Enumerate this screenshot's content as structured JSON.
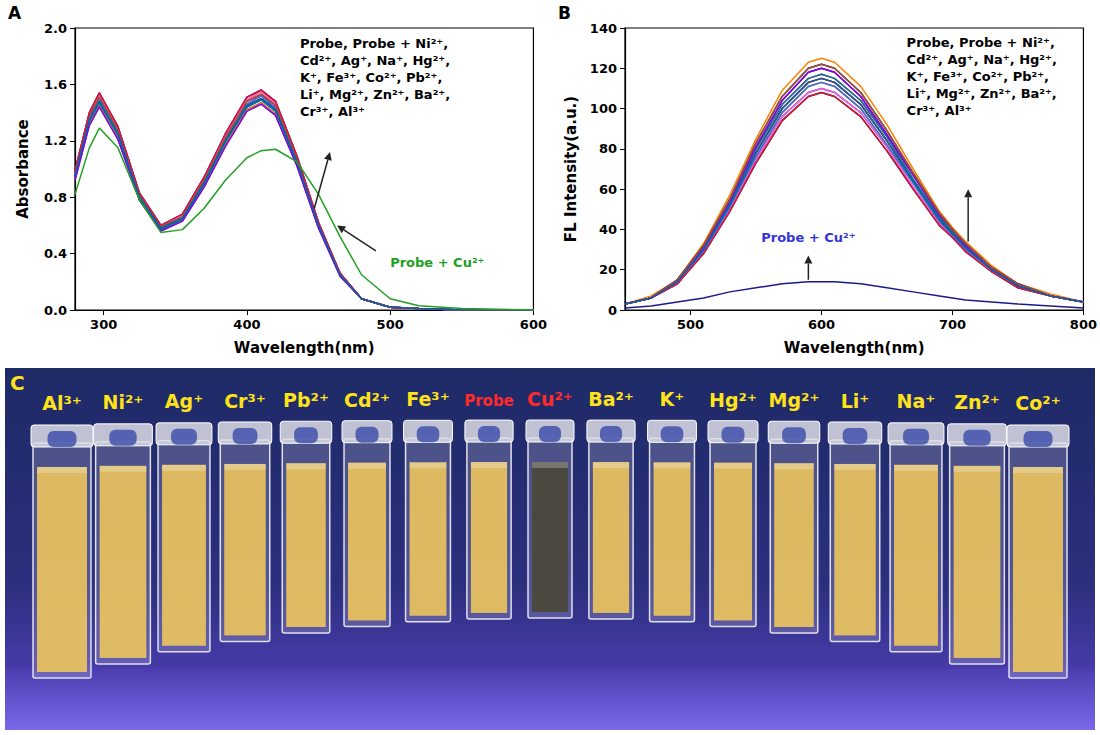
{
  "chart_data": [
    {
      "panel": "A",
      "type": "line",
      "xlabel": "Wavelength(nm)",
      "ylabel": "Absorbance",
      "grid": false,
      "x": [
        280,
        290,
        297,
        310,
        325,
        340,
        355,
        370,
        385,
        400,
        410,
        420,
        435,
        450,
        465,
        480,
        500,
        520,
        550,
        600
      ],
      "xlim": [
        280,
        600
      ],
      "xticks": [
        300,
        400,
        500,
        600
      ],
      "ylim": [
        0,
        2.0
      ],
      "yticks": [
        {
          "value": 0,
          "label": "0.0"
        },
        {
          "value": 0.4,
          "label": "0.4"
        },
        {
          "value": 0.8,
          "label": "0.8"
        },
        {
          "value": 1.2,
          "label": "1.2"
        },
        {
          "value": 1.6,
          "label": "1.6"
        },
        {
          "value": 2.0,
          "label": "2.0"
        }
      ],
      "annotations": [
        {
          "lines": [
            "Probe, Probe + Ni²⁺,",
            "Cd²⁺, Ag⁺, Na⁺, Hg²⁺,",
            "K⁺, Fe³⁺, Co²⁺, Pb²⁺,",
            "Li⁺, Mg²⁺, Zn²⁺, Ba²⁺,",
            "Cr³⁺, Al³⁺"
          ],
          "color": "#000000"
        },
        {
          "lines": [
            "Probe + Cu²⁺"
          ],
          "color": "#22a022"
        }
      ],
      "series": [
        {
          "name": "Probe",
          "color": "#000000",
          "values": [
            0.95,
            1.35,
            1.48,
            1.25,
            0.8,
            0.58,
            0.65,
            0.9,
            1.2,
            1.45,
            1.5,
            1.42,
            1.05,
            0.6,
            0.25,
            0.08,
            0.02,
            0.01,
            0,
            0
          ]
        },
        {
          "name": "Ni²⁺",
          "color": "#ff0000",
          "values": [
            0.98,
            1.39,
            1.52,
            1.29,
            0.82,
            0.6,
            0.67,
            0.93,
            1.24,
            1.49,
            1.55,
            1.46,
            1.08,
            0.62,
            0.26,
            0.08,
            0.02,
            0.01,
            0,
            0
          ]
        },
        {
          "name": "Cd²⁺",
          "color": "#0000ff",
          "values": [
            0.93,
            1.32,
            1.45,
            1.23,
            0.78,
            0.57,
            0.64,
            0.88,
            1.18,
            1.42,
            1.47,
            1.39,
            1.03,
            0.59,
            0.25,
            0.08,
            0.02,
            0.01,
            0,
            0
          ]
        },
        {
          "name": "Ag⁺",
          "color": "#ff00ff",
          "values": [
            0.96,
            1.36,
            1.49,
            1.26,
            0.81,
            0.59,
            0.66,
            0.91,
            1.21,
            1.46,
            1.52,
            1.43,
            1.06,
            0.61,
            0.25,
            0.08,
            0.02,
            0.01,
            0,
            0
          ]
        },
        {
          "name": "Na⁺",
          "color": "#808000",
          "values": [
            0.92,
            1.31,
            1.44,
            1.21,
            0.78,
            0.56,
            0.63,
            0.87,
            1.16,
            1.41,
            1.46,
            1.38,
            1.02,
            0.58,
            0.24,
            0.08,
            0.02,
            0.01,
            0,
            0
          ]
        },
        {
          "name": "Hg²⁺",
          "color": "#000080",
          "values": [
            0.99,
            1.4,
            1.54,
            1.3,
            0.83,
            0.6,
            0.68,
            0.94,
            1.25,
            1.51,
            1.56,
            1.48,
            1.09,
            0.62,
            0.26,
            0.08,
            0.02,
            0.01,
            0,
            0
          ]
        },
        {
          "name": "K⁺",
          "color": "#800080",
          "values": [
            0.94,
            1.34,
            1.47,
            1.24,
            0.79,
            0.57,
            0.64,
            0.89,
            1.19,
            1.44,
            1.49,
            1.41,
            1.04,
            0.59,
            0.25,
            0.08,
            0.02,
            0.01,
            0,
            0
          ]
        },
        {
          "name": "Fe³⁺",
          "color": "#800000",
          "values": [
            0.97,
            1.38,
            1.51,
            1.28,
            0.82,
            0.59,
            0.66,
            0.92,
            1.22,
            1.48,
            1.53,
            1.45,
            1.07,
            0.61,
            0.26,
            0.08,
            0.02,
            0.01,
            0,
            0
          ]
        },
        {
          "name": "Co²⁺",
          "color": "#ff8000",
          "values": [
            0.93,
            1.32,
            1.45,
            1.23,
            0.78,
            0.57,
            0.64,
            0.88,
            1.18,
            1.42,
            1.47,
            1.39,
            1.03,
            0.59,
            0.25,
            0.08,
            0.02,
            0.01,
            0,
            0
          ]
        },
        {
          "name": "Pb²⁺",
          "color": "#ff66cc",
          "values": [
            0.98,
            1.39,
            1.52,
            1.29,
            0.82,
            0.6,
            0.67,
            0.93,
            1.24,
            1.49,
            1.55,
            1.46,
            1.08,
            0.62,
            0.26,
            0.08,
            0.02,
            0.01,
            0,
            0
          ]
        },
        {
          "name": "Li⁺",
          "color": "#008080",
          "values": [
            0.94,
            1.34,
            1.47,
            1.24,
            0.79,
            0.57,
            0.64,
            0.89,
            1.19,
            1.44,
            1.49,
            1.41,
            1.04,
            0.59,
            0.25,
            0.08,
            0.02,
            0.01,
            0,
            0
          ]
        },
        {
          "name": "Mg²⁺",
          "color": "#4169e1",
          "values": [
            0.96,
            1.36,
            1.49,
            1.26,
            0.81,
            0.59,
            0.66,
            0.91,
            1.21,
            1.46,
            1.52,
            1.43,
            1.06,
            0.61,
            0.25,
            0.08,
            0.02,
            0.01,
            0,
            0
          ]
        },
        {
          "name": "Zn²⁺",
          "color": "#8000ff",
          "values": [
            0.92,
            1.31,
            1.44,
            1.21,
            0.78,
            0.56,
            0.63,
            0.87,
            1.16,
            1.41,
            1.46,
            1.38,
            1.02,
            0.58,
            0.24,
            0.08,
            0.02,
            0.01,
            0,
            0
          ]
        },
        {
          "name": "Ba²⁺",
          "color": "#a0522d",
          "values": [
            0.97,
            1.38,
            1.51,
            1.28,
            0.82,
            0.59,
            0.66,
            0.92,
            1.22,
            1.48,
            1.53,
            1.45,
            1.07,
            0.61,
            0.26,
            0.08,
            0.02,
            0.01,
            0,
            0
          ]
        },
        {
          "name": "Cr³⁺",
          "color": "#dc143c",
          "values": [
            0.99,
            1.4,
            1.54,
            1.3,
            0.83,
            0.6,
            0.68,
            0.94,
            1.25,
            1.51,
            1.56,
            1.48,
            1.09,
            0.62,
            0.26,
            0.08,
            0.02,
            0.01,
            0,
            0
          ]
        },
        {
          "name": "Al³⁺",
          "color": "#0066aa",
          "values": [
            0.95,
            1.35,
            1.48,
            1.25,
            0.8,
            0.58,
            0.65,
            0.9,
            1.2,
            1.45,
            1.5,
            1.42,
            1.05,
            0.6,
            0.25,
            0.08,
            0.02,
            0.01,
            0,
            0
          ]
        },
        {
          "name": "Probe + Cu²⁺",
          "color": "#22a022",
          "values": [
            0.82,
            1.15,
            1.29,
            1.15,
            0.78,
            0.55,
            0.57,
            0.72,
            0.92,
            1.08,
            1.13,
            1.14,
            1.05,
            0.82,
            0.52,
            0.25,
            0.08,
            0.03,
            0.01,
            0
          ]
        }
      ]
    },
    {
      "panel": "B",
      "type": "line",
      "xlabel": "Wavelength(nm)",
      "ylabel": "FL Intensity(a.u.)",
      "grid": false,
      "x": [
        450,
        470,
        490,
        510,
        530,
        550,
        570,
        590,
        600,
        610,
        630,
        650,
        670,
        690,
        700,
        710,
        730,
        750,
        775,
        800
      ],
      "xlim": [
        450,
        800
      ],
      "xticks": [
        500,
        600,
        700,
        800
      ],
      "ylim": [
        0,
        140
      ],
      "yticks": [
        0,
        20,
        40,
        60,
        80,
        100,
        120,
        140
      ],
      "annotations": [
        {
          "lines": [
            "Probe, Probe + Ni²⁺,",
            "Cd²⁺, Ag⁺, Na⁺, Hg²⁺,",
            "K⁺, Fe³⁺, Co²⁺, Pb²⁺,",
            "Li⁺, Mg²⁺, Zn²⁺, Ba²⁺,",
            "Cr³⁺, Al³⁺"
          ],
          "color": "#000000"
        },
        {
          "lines": [
            "Probe + Cu²⁺"
          ],
          "color": "#3333dd"
        }
      ],
      "series": [
        {
          "name": "Probe",
          "color": "#000000",
          "values": [
            3,
            6,
            13,
            28,
            49,
            73,
            94,
            106,
            108,
            106,
            96,
            79,
            60,
            42,
            36,
            29,
            19,
            11,
            7,
            4
          ]
        },
        {
          "name": "Ni²⁺",
          "color": "#ff8000",
          "values": [
            3,
            7,
            15,
            33,
            57,
            85,
            109,
            123,
            125,
            123,
            111,
            92,
            70,
            49,
            41,
            34,
            22,
            13,
            8,
            4
          ]
        },
        {
          "name": "Cd²⁺",
          "color": "#0000ff",
          "values": [
            3,
            6,
            13,
            29,
            50,
            75,
            96,
            108,
            110,
            108,
            98,
            81,
            61,
            43,
            36,
            30,
            19,
            12,
            7,
            4
          ]
        },
        {
          "name": "Ag⁺",
          "color": "#ff00ff",
          "values": [
            3,
            6,
            14,
            31,
            53,
            80,
            102,
            115,
            117,
            115,
            104,
            86,
            65,
            46,
            39,
            32,
            20,
            12,
            7,
            4
          ]
        },
        {
          "name": "Na⁺",
          "color": "#808000",
          "values": [
            3,
            6,
            14,
            29,
            51,
            76,
            98,
            111,
            113,
            111,
            100,
            82,
            63,
            44,
            37,
            30,
            20,
            12,
            7,
            4
          ]
        },
        {
          "name": "Hg²⁺",
          "color": "#000080",
          "values": [
            3,
            6,
            15,
            32,
            55,
            83,
            106,
            120,
            122,
            120,
            108,
            89,
            68,
            48,
            40,
            33,
            21,
            13,
            7,
            4
          ]
        },
        {
          "name": "K⁺",
          "color": "#800080",
          "values": [
            3,
            6,
            14,
            30,
            52,
            78,
            100,
            113,
            115,
            113,
            102,
            84,
            64,
            45,
            38,
            31,
            20,
            12,
            7,
            4
          ]
        },
        {
          "name": "Fe³⁺",
          "color": "#800000",
          "values": [
            3,
            6,
            15,
            31,
            54,
            81,
            104,
            118,
            120,
            118,
            106,
            87,
            67,
            47,
            40,
            32,
            21,
            12,
            7,
            4
          ]
        },
        {
          "name": "Co²⁺",
          "color": "#ff0000",
          "values": [
            3,
            6,
            14,
            30,
            52,
            78,
            100,
            113,
            115,
            113,
            102,
            84,
            64,
            45,
            38,
            31,
            20,
            12,
            7,
            4
          ]
        },
        {
          "name": "Pb²⁺",
          "color": "#ff66cc",
          "values": [
            3,
            6,
            13,
            29,
            50,
            75,
            96,
            108,
            110,
            108,
            98,
            81,
            61,
            43,
            36,
            30,
            19,
            12,
            7,
            4
          ]
        },
        {
          "name": "Li⁺",
          "color": "#008080",
          "values": [
            3,
            6,
            14,
            31,
            53,
            80,
            102,
            115,
            117,
            115,
            104,
            86,
            65,
            46,
            39,
            32,
            20,
            12,
            7,
            4
          ]
        },
        {
          "name": "Mg²⁺",
          "color": "#4169e1",
          "values": [
            3,
            6,
            14,
            29,
            51,
            76,
            98,
            111,
            113,
            111,
            100,
            82,
            63,
            44,
            37,
            30,
            20,
            12,
            7,
            4
          ]
        },
        {
          "name": "Zn²⁺",
          "color": "#8000ff",
          "values": [
            3,
            6,
            15,
            31,
            54,
            81,
            104,
            118,
            120,
            118,
            106,
            87,
            67,
            47,
            40,
            32,
            21,
            12,
            7,
            4
          ]
        },
        {
          "name": "Ba²⁺",
          "color": "#a0522d",
          "values": [
            3,
            6,
            15,
            32,
            55,
            83,
            106,
            120,
            122,
            120,
            108,
            89,
            68,
            48,
            40,
            33,
            21,
            13,
            7,
            4
          ]
        },
        {
          "name": "Cr³⁺",
          "color": "#dc143c",
          "values": [
            3,
            6,
            13,
            28,
            49,
            73,
            94,
            106,
            108,
            106,
            96,
            79,
            60,
            42,
            36,
            29,
            19,
            11,
            7,
            4
          ]
        },
        {
          "name": "Al³⁺",
          "color": "#0066aa",
          "values": [
            3,
            6,
            14,
            30,
            52,
            78,
            100,
            113,
            115,
            113,
            102,
            84,
            64,
            45,
            38,
            31,
            20,
            12,
            7,
            4
          ]
        },
        {
          "name": "Probe + Cu²⁺",
          "color": "#1a1a8c",
          "values": [
            1,
            2,
            4,
            6,
            9,
            11,
            13,
            14,
            14,
            14,
            13,
            11,
            9,
            7,
            6,
            5,
            4,
            3,
            2,
            1
          ]
        }
      ]
    }
  ],
  "photo": {
    "panel": "C",
    "labels": [
      {
        "text": "Al³⁺",
        "color": "#ffe21a",
        "fill": "#e9c35e"
      },
      {
        "text": "Ni²⁺",
        "color": "#ffe21a",
        "fill": "#e9c35e"
      },
      {
        "text": "Ag⁺",
        "color": "#ffe21a",
        "fill": "#e9c35e"
      },
      {
        "text": "Cr³⁺",
        "color": "#ffe21a",
        "fill": "#e9c35e"
      },
      {
        "text": "Pb²⁺",
        "color": "#ffe21a",
        "fill": "#e9c35e"
      },
      {
        "text": "Cd²⁺",
        "color": "#ffe21a",
        "fill": "#e9c35e"
      },
      {
        "text": "Fe³⁺",
        "color": "#ffe21a",
        "fill": "#e9c35e"
      },
      {
        "text": "Probe",
        "color": "#ff2a2a",
        "fill": "#e9c35e"
      },
      {
        "text": "Cu²⁺",
        "color": "#ff2a2a",
        "fill": "#4a4838"
      },
      {
        "text": "Ba²⁺",
        "color": "#ffe21a",
        "fill": "#e9c35e"
      },
      {
        "text": "K⁺",
        "color": "#ffe21a",
        "fill": "#e9c35e"
      },
      {
        "text": "Hg²⁺",
        "color": "#ffe21a",
        "fill": "#e9c35e"
      },
      {
        "text": "Mg²⁺",
        "color": "#ffe21a",
        "fill": "#e9c35e"
      },
      {
        "text": "Li⁺",
        "color": "#ffe21a",
        "fill": "#e9c35e"
      },
      {
        "text": "Na⁺",
        "color": "#ffe21a",
        "fill": "#e9c35e"
      },
      {
        "text": "Zn²⁺",
        "color": "#ffe21a",
        "fill": "#e9c35e"
      },
      {
        "text": "Co²⁺",
        "color": "#ffe21a",
        "fill": "#e9c35e"
      }
    ]
  }
}
